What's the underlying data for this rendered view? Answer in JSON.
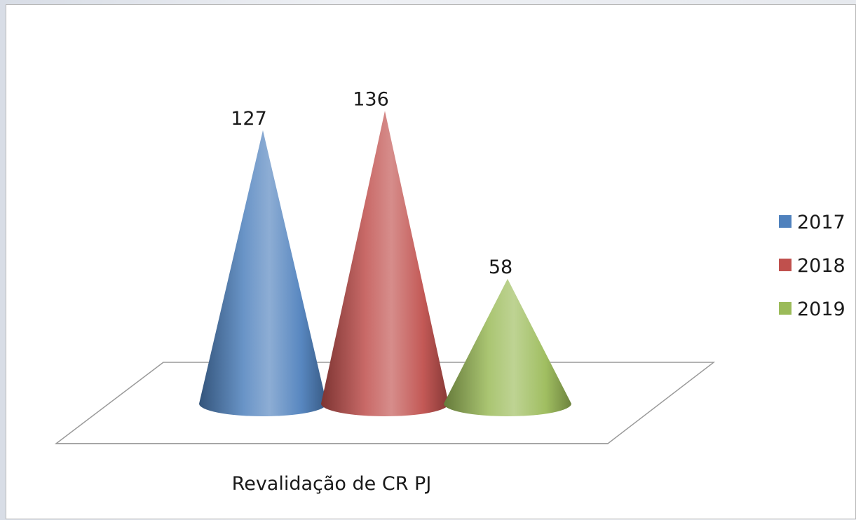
{
  "chart_data": {
    "type": "bar",
    "shape": "cone-3d",
    "categories": [
      "Revalidação de CR PJ"
    ],
    "series": [
      {
        "name": "2017",
        "values": [
          127
        ],
        "color": "#4f81bd"
      },
      {
        "name": "2018",
        "values": [
          136
        ],
        "color": "#c0504d"
      },
      {
        "name": "2019",
        "values": [
          58
        ],
        "color": "#9bbb59"
      }
    ],
    "data_labels": true,
    "legend": "right",
    "grid": false
  }
}
